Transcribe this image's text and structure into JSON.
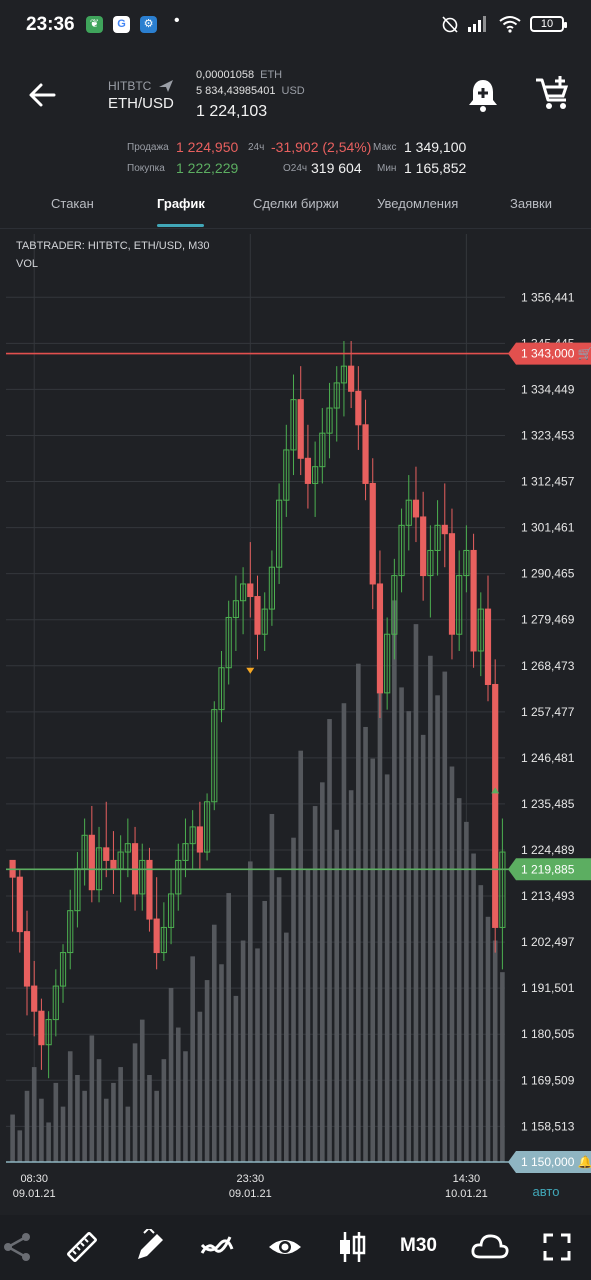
{
  "status_bar": {
    "time": "23:36",
    "battery": "10",
    "apps": [
      "leaf-app-icon",
      "google-icon",
      "settings-app-icon"
    ]
  },
  "header": {
    "exchange": "HITBTC",
    "pair": "ETH/USD",
    "volume_btc": "0,00001058",
    "volume_btc_unit": "ETH",
    "volume_usd": "5 834,43985401",
    "volume_usd_unit": "USD",
    "last_price": "1 224,103"
  },
  "stats": {
    "sell_label": "Продажа",
    "sell_value": "1 224,950",
    "buy_label": "Покупка",
    "buy_value": "1 222,229",
    "change_label": "24ч",
    "change_value": "-31,902 (2,54%)",
    "volume_label": "O24ч",
    "volume_value": "319 604",
    "max_label": "Макс",
    "max_value": "1 349,100",
    "min_label": "Мин",
    "min_value": "1 165,852"
  },
  "tabs": [
    "Стакан",
    "График",
    "Сделки биржи",
    "Уведомления",
    "Заявки"
  ],
  "active_tab": "График",
  "chart_data": {
    "type": "candlestick",
    "title": "TABTRADER: HITBTC, ETH/USD, M30",
    "subtitle": "VOL",
    "y_ticks": [
      "1 356,441",
      "1 345,445",
      "1 334,449",
      "1 323,453",
      "1 312,457",
      "1 301,461",
      "1 290,465",
      "1 279,469",
      "1 268,473",
      "1 257,477",
      "1 246,481",
      "1 235,485",
      "1 224,489",
      "1 213,493",
      "1 202,497",
      "1 191,501",
      "1 180,505",
      "1 169,509",
      "1 158,513"
    ],
    "ylim": [
      1150,
      1362
    ],
    "x_ticks": [
      {
        "time": "08:30",
        "date": "09.01.21",
        "index": 3
      },
      {
        "time": "23:30",
        "date": "09.01.21",
        "index": 33
      },
      {
        "time": "14:30",
        "date": "10.01.21",
        "index": 63
      }
    ],
    "x_extra_label": "авто",
    "sell_line": {
      "value": 1343.0,
      "label": "1 343,000"
    },
    "buy_line": {
      "value": 1219.885,
      "label": "1 219,885"
    },
    "alert_line": {
      "value": 1150.0,
      "label": "1 150,000"
    },
    "colors": {
      "up": "#4caf50",
      "down": "#e8605f",
      "sell_line": "#e2504e",
      "buy_line": "#5cae61",
      "alert_line": "#8fb5c2",
      "volume": "#55585d",
      "grid": "#34373c"
    },
    "candles": [
      [
        1222,
        1222,
        1205,
        1218
      ],
      [
        1218,
        1220,
        1200,
        1205
      ],
      [
        1205,
        1210,
        1185,
        1192
      ],
      [
        1192,
        1198,
        1180,
        1186
      ],
      [
        1186,
        1189,
        1172,
        1178
      ],
      [
        1178,
        1186,
        1170,
        1184
      ],
      [
        1184,
        1196,
        1180,
        1192
      ],
      [
        1192,
        1202,
        1188,
        1200
      ],
      [
        1200,
        1215,
        1196,
        1210
      ],
      [
        1210,
        1224,
        1206,
        1220
      ],
      [
        1220,
        1232,
        1216,
        1228
      ],
      [
        1228,
        1235,
        1212,
        1215
      ],
      [
        1215,
        1230,
        1212,
        1225
      ],
      [
        1225,
        1236,
        1218,
        1222
      ],
      [
        1222,
        1229,
        1214,
        1220
      ],
      [
        1220,
        1228,
        1212,
        1224
      ],
      [
        1224,
        1232,
        1218,
        1226
      ],
      [
        1226,
        1230,
        1210,
        1214
      ],
      [
        1214,
        1226,
        1210,
        1222
      ],
      [
        1222,
        1225,
        1205,
        1208
      ],
      [
        1208,
        1218,
        1196,
        1200
      ],
      [
        1200,
        1212,
        1198,
        1206
      ],
      [
        1206,
        1220,
        1202,
        1214
      ],
      [
        1214,
        1226,
        1210,
        1222
      ],
      [
        1222,
        1232,
        1218,
        1226
      ],
      [
        1226,
        1234,
        1220,
        1230
      ],
      [
        1230,
        1236,
        1220,
        1224
      ],
      [
        1224,
        1238,
        1222,
        1236
      ],
      [
        1236,
        1260,
        1234,
        1258
      ],
      [
        1258,
        1272,
        1255,
        1268
      ],
      [
        1268,
        1284,
        1264,
        1280
      ],
      [
        1280,
        1290,
        1272,
        1284
      ],
      [
        1284,
        1292,
        1276,
        1288
      ],
      [
        1288,
        1298,
        1280,
        1285
      ],
      [
        1285,
        1290,
        1270,
        1276
      ],
      [
        1276,
        1286,
        1272,
        1282
      ],
      [
        1282,
        1296,
        1278,
        1292
      ],
      [
        1292,
        1312,
        1288,
        1308
      ],
      [
        1308,
        1326,
        1304,
        1320
      ],
      [
        1320,
        1338,
        1314,
        1332
      ],
      [
        1332,
        1340,
        1314,
        1318
      ],
      [
        1318,
        1326,
        1306,
        1312
      ],
      [
        1312,
        1322,
        1304,
        1316
      ],
      [
        1316,
        1330,
        1312,
        1324
      ],
      [
        1324,
        1336,
        1318,
        1330
      ],
      [
        1330,
        1340,
        1322,
        1336
      ],
      [
        1336,
        1346,
        1328,
        1340
      ],
      [
        1340,
        1346,
        1330,
        1334
      ],
      [
        1334,
        1340,
        1320,
        1326
      ],
      [
        1326,
        1332,
        1308,
        1312
      ],
      [
        1312,
        1318,
        1282,
        1288
      ],
      [
        1288,
        1296,
        1256,
        1262
      ],
      [
        1262,
        1280,
        1258,
        1276
      ],
      [
        1276,
        1294,
        1270,
        1290
      ],
      [
        1290,
        1306,
        1286,
        1302
      ],
      [
        1302,
        1314,
        1296,
        1308
      ],
      [
        1308,
        1316,
        1298,
        1304
      ],
      [
        1304,
        1310,
        1284,
        1290
      ],
      [
        1290,
        1302,
        1280,
        1296
      ],
      [
        1296,
        1308,
        1290,
        1302
      ],
      [
        1302,
        1312,
        1292,
        1300
      ],
      [
        1300,
        1306,
        1270,
        1276
      ],
      [
        1276,
        1296,
        1272,
        1290
      ],
      [
        1290,
        1302,
        1286,
        1296
      ],
      [
        1296,
        1300,
        1268,
        1272
      ],
      [
        1272,
        1286,
        1266,
        1282
      ],
      [
        1282,
        1290,
        1260,
        1264
      ],
      [
        1264,
        1270,
        1200,
        1206
      ],
      [
        1206,
        1232,
        1196,
        1224
      ]
    ],
    "volumes": [
      6,
      4,
      9,
      12,
      8,
      5,
      10,
      7,
      14,
      11,
      9,
      16,
      13,
      8,
      10,
      12,
      7,
      15,
      18,
      11,
      9,
      13,
      22,
      17,
      14,
      26,
      19,
      23,
      30,
      25,
      34,
      21,
      28,
      38,
      27,
      33,
      44,
      36,
      29,
      41,
      52,
      37,
      45,
      48,
      56,
      42,
      58,
      47,
      63,
      55,
      51,
      66,
      49,
      71,
      60,
      57,
      68,
      54,
      64,
      59,
      62,
      50,
      46,
      43,
      39,
      35,
      31,
      28,
      24
    ]
  },
  "toolbar": {
    "items": [
      "share-icon",
      "ruler-icon",
      "pencil-icon",
      "indicators-icon",
      "eye-icon",
      "candles-icon",
      "timeframe",
      "cloud-icon",
      "fullscreen-icon"
    ],
    "timeframe_label": "M30"
  }
}
